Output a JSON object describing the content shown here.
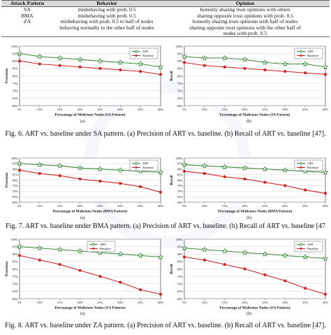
{
  "table": {
    "headers": [
      "Attack Pattern",
      "Behavior",
      "Opinion"
    ],
    "rows": [
      {
        "pattern": "SA",
        "behavior": [
          "misbehaving with prob. 0.5"
        ],
        "opinion": [
          "honestly sharing trust opinions with others"
        ]
      },
      {
        "pattern": "BMA",
        "behavior": [
          "misbehaving with prob. 0.5"
        ],
        "opinion": [
          "sharing opposite trust opinions with prob. 0.5"
        ]
      },
      {
        "pattern": "ZA",
        "behavior": [
          "misbehaving with prob. 0.5 to half of nodes",
          "behaving normally to the other half of nodes"
        ],
        "opinion": [
          "honestly sharing trust opinions with half of nodes",
          "sharing opposite trust opinions with the other half of",
          "nodes with prob. 0.5"
        ]
      }
    ]
  },
  "figures": [
    {
      "caption": "Fig. 6.  ART vs. baseline under SA pattern. (a) Precision of ART vs. baseline. (b) Recall of ART vs. baseline [47].",
      "panels": [
        {
          "sub": "(a)",
          "chart_data": {
            "type": "line",
            "xlabel": "Percentage of Malicious Nodes (SA Pattern)",
            "ylabel": "Precision",
            "categories": [
              "5%",
              "10%",
              "15%",
              "20%",
              "25%",
              "30%",
              "35%",
              "40%"
            ],
            "ylim": [
              60,
              100
            ],
            "yticks": [
              "60%",
              "65%",
              "70%",
              "75%",
              "80%",
              "85%",
              "90%",
              "95%",
              "100%"
            ],
            "series": [
              {
                "name": "ART",
                "color": "#3a8a3a",
                "marker": "star",
                "values": [
                  95,
                  93,
                  92,
                  91,
                  90,
                  89,
                  88,
                  86
                ]
              },
              {
                "name": "Baseline",
                "color": "#cc2222",
                "marker": "circle",
                "values": [
                  90,
                  88,
                  87,
                  86,
                  85,
                  84,
                  83,
                  81
                ]
              }
            ],
            "legend": "top-right"
          }
        },
        {
          "sub": "(b)",
          "chart_data": {
            "type": "line",
            "xlabel": "Percentage of Malicious Nodes (SA Pattern)",
            "ylabel": "Recall",
            "categories": [
              "5%",
              "10%",
              "15%",
              "20%",
              "25%",
              "30%",
              "35%",
              "40%"
            ],
            "ylim": [
              60,
              100
            ],
            "yticks": [
              "60%",
              "65%",
              "70%",
              "75%",
              "80%",
              "85%",
              "90%",
              "95%",
              "100%"
            ],
            "series": [
              {
                "name": "ART",
                "color": "#3a8a3a",
                "marker": "star",
                "values": [
                  93,
                  92,
                  92,
                  91,
                  89,
                  88,
                  88,
                  86
                ]
              },
              {
                "name": "Baseline",
                "color": "#cc2222",
                "marker": "circle",
                "values": [
                  89,
                  87,
                  86,
                  85,
                  84,
                  83,
                  82,
                  81
                ]
              }
            ],
            "legend": "top-right"
          }
        }
      ]
    },
    {
      "caption": "Fig. 7.  ART vs. baseline under BMA pattern. (a) Precision of ART vs. baseline. (b) Recall of ART vs. baseline [47",
      "panels": [
        {
          "sub": "(a)",
          "chart_data": {
            "type": "line",
            "xlabel": "Percentage of Malicious Nodes (BMA Pattern)",
            "ylabel": "Precision",
            "categories": [
              "5%",
              "10%",
              "15%",
              "20%",
              "25%",
              "30%",
              "35%",
              "40%"
            ],
            "ylim": [
              60,
              100
            ],
            "yticks": [
              "60%",
              "65%",
              "70%",
              "75%",
              "80%",
              "85%",
              "90%",
              "95%",
              "100%"
            ],
            "series": [
              {
                "name": "ART",
                "color": "#3a8a3a",
                "marker": "star",
                "values": [
                  95,
                  94,
                  93,
                  91,
                  90,
                  89,
                  88,
                  87
                ]
              },
              {
                "name": "Baseline",
                "color": "#cc2222",
                "marker": "circle",
                "values": [
                  89,
                  86,
                  84,
                  81,
                  79,
                  77,
                  74,
                  69
                ]
              }
            ],
            "legend": "top-right"
          }
        },
        {
          "sub": "(b)",
          "chart_data": {
            "type": "line",
            "xlabel": "Percentage of Malicious Nodes (BMA Pattern)",
            "ylabel": "Recall",
            "categories": [
              "5%",
              "10%",
              "15%",
              "20%",
              "25%",
              "30%",
              "35%",
              "40%"
            ],
            "ylim": [
              60,
              100
            ],
            "yticks": [
              "60%",
              "65%",
              "70%",
              "75%",
              "80%",
              "85%",
              "90%",
              "95%",
              "100%"
            ],
            "series": [
              {
                "name": "ART",
                "color": "#3a8a3a",
                "marker": "star",
                "values": [
                  94,
                  93,
                  92,
                  91,
                  90,
                  89,
                  88,
                  87
                ]
              },
              {
                "name": "Baseline",
                "color": "#cc2222",
                "marker": "circle",
                "values": [
                  88,
                  86,
                  83,
                  81,
                  78,
                  75,
                  71,
                  68
                ]
              }
            ],
            "legend": "top-right"
          }
        }
      ]
    },
    {
      "caption": "Fig. 8.  ART vs. baseline under ZA pattern. (a) Precision of ART vs. baseline. (b) Recall of ART vs. baseline [47].",
      "panels": [
        {
          "sub": "(a)",
          "chart_data": {
            "type": "line",
            "xlabel": "Percentage of Malicious Nodes (ZA Pattern)",
            "ylabel": "Precision",
            "categories": [
              "5%",
              "10%",
              "15%",
              "20%",
              "25%",
              "30%",
              "35%",
              "40%"
            ],
            "ylim": [
              60,
              100
            ],
            "yticks": [
              "60%",
              "65%",
              "70%",
              "75%",
              "80%",
              "85%",
              "90%",
              "95%",
              "100%"
            ],
            "series": [
              {
                "name": "ART",
                "color": "#3a8a3a",
                "marker": "star",
                "values": [
                  95,
                  94,
                  93,
                  92,
                  91,
                  90,
                  89,
                  88
                ]
              },
              {
                "name": "Baseline",
                "color": "#cc2222",
                "marker": "circle",
                "values": [
                  89,
                  86,
                  83,
                  79,
                  75,
                  71,
                  66,
                  63
                ]
              }
            ],
            "legend": "top-center"
          }
        },
        {
          "sub": "(b)",
          "chart_data": {
            "type": "line",
            "xlabel": "Percentage of Malicious Nodes (ZA Pattern)",
            "ylabel": "Recall",
            "categories": [
              "5%",
              "10%",
              "15%",
              "20%",
              "25%",
              "30%",
              "35%",
              "40%"
            ],
            "ylim": [
              60,
              100
            ],
            "yticks": [
              "60%",
              "65%",
              "70%",
              "75%",
              "80%",
              "85%",
              "90%",
              "95%",
              "100%"
            ],
            "series": [
              {
                "name": "ART",
                "color": "#3a8a3a",
                "marker": "star",
                "values": [
                  94,
                  93,
                  92,
                  91,
                  90,
                  89,
                  88,
                  87
                ]
              },
              {
                "name": "Baseline",
                "color": "#cc2222",
                "marker": "circle",
                "values": [
                  88,
                  86,
                  83,
                  80,
                  76,
                  72,
                  67,
                  63
                ]
              }
            ],
            "legend": "top-right"
          }
        }
      ]
    }
  ]
}
